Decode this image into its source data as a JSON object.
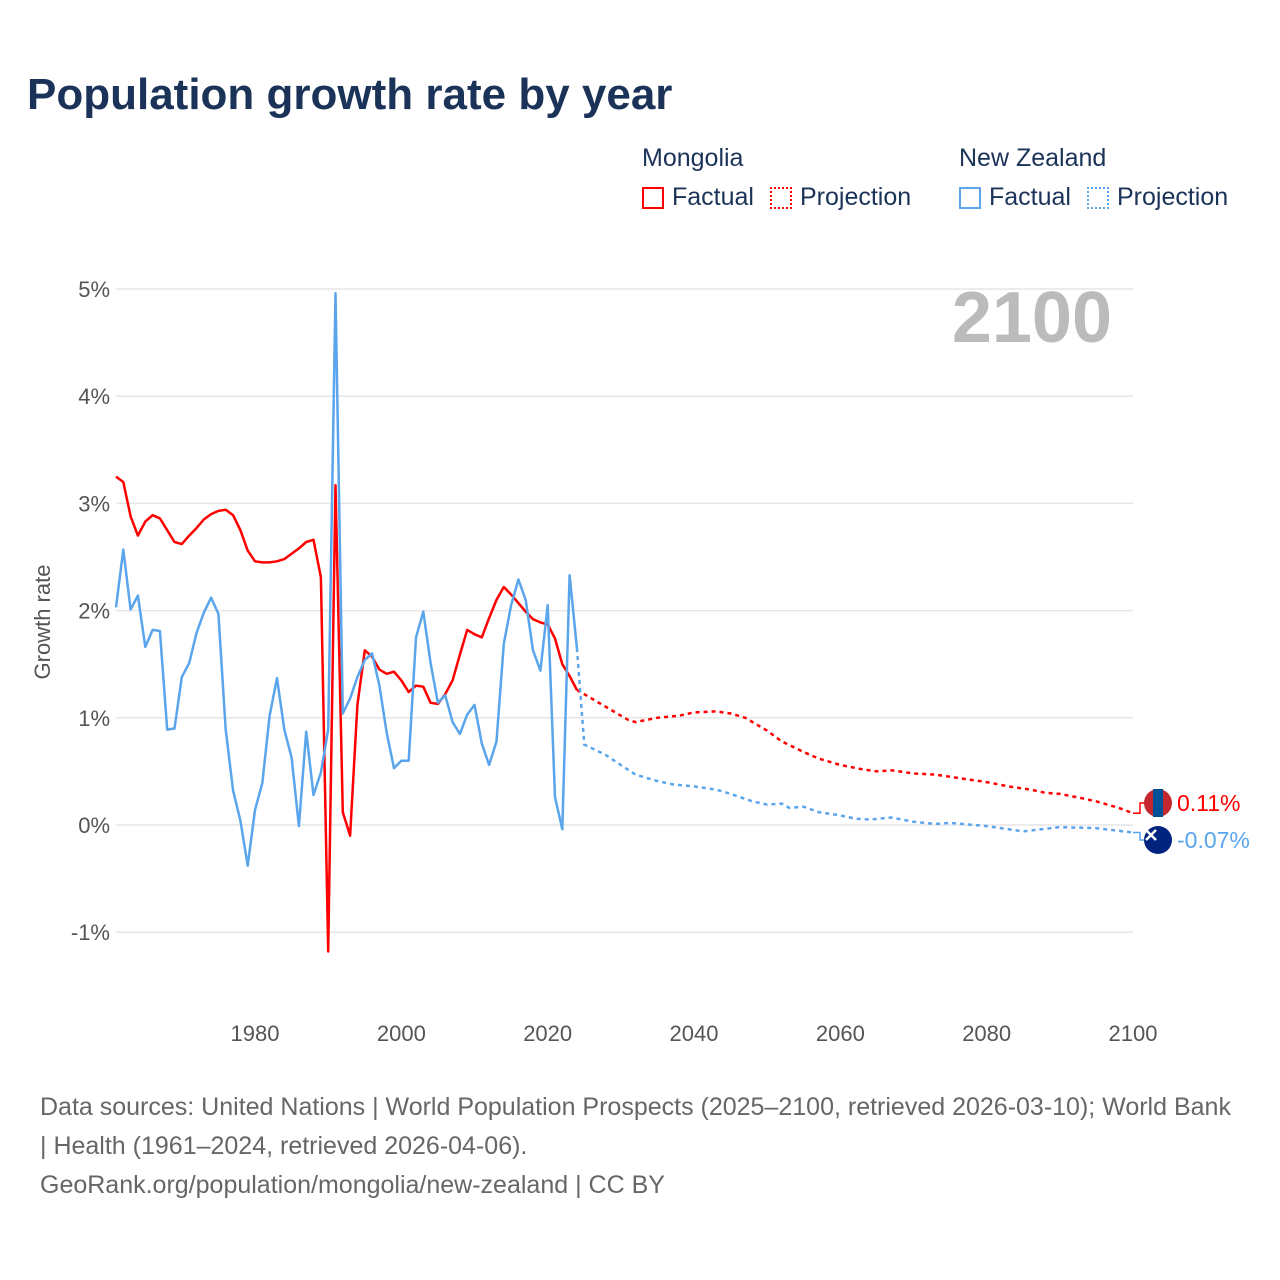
{
  "title": "Population growth rate by year",
  "legend": [
    {
      "group": "Mongolia",
      "color": "#ff0000",
      "factual_label": "Factual",
      "projection_label": "Projection"
    },
    {
      "group": "New Zealand",
      "color": "#5aa5ec",
      "factual_label": "Factual",
      "projection_label": "Projection"
    }
  ],
  "year_label": "2100",
  "footer": {
    "sources": "Data sources: United Nations | World Population Prospects (2025–2100, retrieved 2026-03-10); World Bank | Health (1961–2024, retrieved 2026-04-06).",
    "link": "GeoRank.org/population/mongolia/new-zealand | CC BY"
  },
  "chart_data": {
    "type": "line",
    "title": "Population growth rate by year",
    "xlabel": "",
    "ylabel": "Growth rate",
    "xlim": [
      1961,
      2100
    ],
    "ylim": [
      -1.6,
      5.2
    ],
    "x_ticks": [
      1980,
      2000,
      2020,
      2040,
      2060,
      2080,
      2100
    ],
    "y_ticks": [
      -1,
      0,
      1,
      2,
      3,
      4,
      5
    ],
    "y_tick_labels": [
      "-1%",
      "0%",
      "1%",
      "2%",
      "3%",
      "4%",
      "5%"
    ],
    "grid": true,
    "legend_position": "top-right",
    "series": [
      {
        "name": "Mongolia",
        "color": "#ff0000",
        "end_label": "0.11%",
        "factual": {
          "x": [
            1961,
            1962,
            1963,
            1964,
            1965,
            1966,
            1967,
            1968,
            1969,
            1970,
            1971,
            1972,
            1973,
            1974,
            1975,
            1976,
            1977,
            1978,
            1979,
            1980,
            1981,
            1982,
            1983,
            1984,
            1985,
            1986,
            1987,
            1988,
            1989,
            1990,
            1991,
            1992,
            1993,
            1994,
            1995,
            1996,
            1997,
            1998,
            1999,
            2000,
            2001,
            2002,
            2003,
            2004,
            2005,
            2006,
            2007,
            2008,
            2009,
            2010,
            2011,
            2012,
            2013,
            2014,
            2015,
            2016,
            2017,
            2018,
            2019,
            2020,
            2021,
            2022,
            2023,
            2024
          ],
          "y": [
            3.25,
            3.2,
            2.88,
            2.7,
            2.83,
            2.89,
            2.86,
            2.75,
            2.64,
            2.62,
            2.7,
            2.77,
            2.85,
            2.9,
            2.93,
            2.94,
            2.89,
            2.75,
            2.56,
            2.46,
            2.45,
            2.45,
            2.46,
            2.48,
            2.53,
            2.58,
            2.64,
            2.66,
            2.31,
            -1.18,
            3.17,
            0.12,
            -0.1,
            1.12,
            1.63,
            1.57,
            1.45,
            1.41,
            1.43,
            1.35,
            1.24,
            1.3,
            1.29,
            1.14,
            1.13,
            1.22,
            1.35,
            1.59,
            1.82,
            1.78,
            1.75,
            1.93,
            2.1,
            2.22,
            2.15,
            2.07,
            1.99,
            1.92,
            1.89,
            1.87,
            1.74,
            1.5,
            1.39,
            1.26
          ]
        },
        "projection": {
          "x": [
            2024,
            2025,
            2028,
            2031,
            2032,
            2035,
            2038,
            2040,
            2043,
            2045,
            2047,
            2050,
            2052,
            2055,
            2057,
            2060,
            2063,
            2065,
            2067,
            2070,
            2073,
            2075,
            2078,
            2080,
            2083,
            2086,
            2088,
            2090,
            2093,
            2095,
            2098,
            2100
          ],
          "y": [
            1.26,
            1.22,
            1.1,
            0.98,
            0.96,
            1.0,
            1.02,
            1.05,
            1.06,
            1.04,
            1.0,
            0.88,
            0.78,
            0.68,
            0.62,
            0.56,
            0.52,
            0.5,
            0.51,
            0.48,
            0.47,
            0.45,
            0.42,
            0.4,
            0.36,
            0.33,
            0.3,
            0.29,
            0.25,
            0.22,
            0.16,
            0.11
          ]
        }
      },
      {
        "name": "New Zealand",
        "color": "#5aa5ec",
        "end_label": "-0.07%",
        "factual": {
          "x": [
            1961,
            1962,
            1963,
            1964,
            1965,
            1966,
            1967,
            1968,
            1969,
            1970,
            1971,
            1972,
            1973,
            1974,
            1975,
            1976,
            1977,
            1978,
            1979,
            1980,
            1981,
            1982,
            1983,
            1984,
            1985,
            1986,
            1987,
            1988,
            1989,
            1990,
            1991,
            1992,
            1993,
            1994,
            1995,
            1996,
            1997,
            1998,
            1999,
            2000,
            2001,
            2002,
            2003,
            2004,
            2005,
            2006,
            2007,
            2008,
            2009,
            2010,
            2011,
            2012,
            2013,
            2014,
            2015,
            2016,
            2017,
            2018,
            2019,
            2020,
            2021,
            2022,
            2023,
            2024
          ],
          "y": [
            2.03,
            2.57,
            2.01,
            2.14,
            1.66,
            1.82,
            1.81,
            0.89,
            0.9,
            1.38,
            1.51,
            1.79,
            1.98,
            2.12,
            1.97,
            0.89,
            0.32,
            0.04,
            -0.38,
            0.14,
            0.39,
            1.02,
            1.37,
            0.89,
            0.63,
            -0.01,
            0.87,
            0.28,
            0.49,
            0.89,
            4.96,
            1.04,
            1.18,
            1.38,
            1.54,
            1.6,
            1.3,
            0.86,
            0.53,
            0.6,
            0.6,
            1.75,
            1.99,
            1.51,
            1.14,
            1.21,
            0.96,
            0.85,
            1.03,
            1.12,
            0.76,
            0.56,
            0.78,
            1.69,
            2.05,
            2.29,
            2.1,
            1.63,
            1.44,
            2.05,
            0.26,
            -0.04,
            2.33,
            1.65
          ]
        },
        "projection": {
          "x": [
            2024,
            2025,
            2028,
            2030,
            2032,
            2035,
            2037,
            2040,
            2043,
            2045,
            2048,
            2050,
            2052,
            2053,
            2055,
            2057,
            2060,
            2062,
            2064,
            2067,
            2070,
            2073,
            2075,
            2080,
            2085,
            2090,
            2095,
            2100
          ],
          "y": [
            1.65,
            0.75,
            0.65,
            0.56,
            0.47,
            0.41,
            0.38,
            0.36,
            0.33,
            0.29,
            0.22,
            0.19,
            0.2,
            0.16,
            0.17,
            0.12,
            0.09,
            0.06,
            0.05,
            0.07,
            0.03,
            0.01,
            0.02,
            -0.01,
            -0.06,
            -0.02,
            -0.03,
            -0.07
          ]
        }
      }
    ]
  }
}
